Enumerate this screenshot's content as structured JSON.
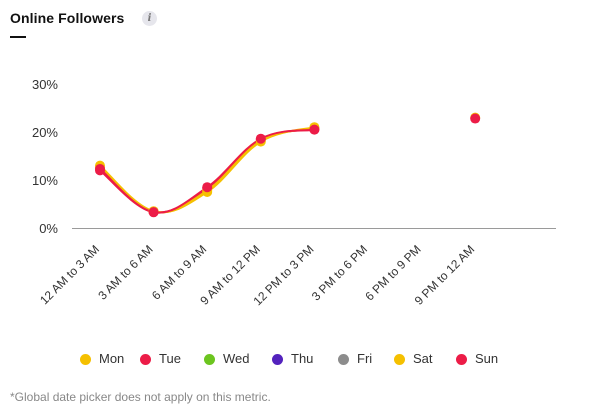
{
  "header": {
    "title": "Online Followers",
    "info_icon": "info-icon",
    "info_glyph": "i"
  },
  "chart_data": {
    "type": "line",
    "title": "Online Followers",
    "categories": [
      "12 AM to 3 AM",
      "3 AM to 6 AM",
      "6 AM to 9 AM",
      "9 AM to 12 PM",
      "12 PM to 3 PM",
      "3 PM to 6 PM",
      "6 PM to 9 PM",
      "9 PM to 12 AM"
    ],
    "y_ticks": [
      "0%",
      "10%",
      "20%",
      "30%"
    ],
    "ylim": [
      0,
      30
    ],
    "y_unit": "%",
    "grid": false,
    "legend_position": "bottom",
    "series": [
      {
        "name": "Mon",
        "color": "#f5c000",
        "values": [
          13.0,
          3.5,
          7.5,
          18.0,
          21.0,
          null,
          null,
          null
        ]
      },
      {
        "name": "Tue",
        "color": "#ec1c47",
        "values": [
          12.0,
          3.3,
          8.3,
          18.5,
          20.5,
          null,
          null,
          null
        ]
      },
      {
        "name": "Wed",
        "color": "#6cc51f",
        "values": [
          null,
          null,
          null,
          null,
          null,
          null,
          null,
          null
        ]
      },
      {
        "name": "Thu",
        "color": "#5322bd",
        "values": [
          null,
          null,
          null,
          null,
          null,
          null,
          null,
          null
        ]
      },
      {
        "name": "Fri",
        "color": "#8c8c8c",
        "values": [
          null,
          null,
          null,
          null,
          null,
          null,
          null,
          null
        ]
      },
      {
        "name": "Sat",
        "color": "#f5c000",
        "values": [
          12.5,
          3.4,
          7.8,
          18.2,
          20.8,
          null,
          null,
          23.0
        ]
      },
      {
        "name": "Sun",
        "color": "#ec1c47",
        "values": [
          12.3,
          3.3,
          8.5,
          18.6,
          20.5,
          null,
          null,
          22.8
        ]
      }
    ]
  },
  "footnote": "*Global date picker does not apply on this metric."
}
